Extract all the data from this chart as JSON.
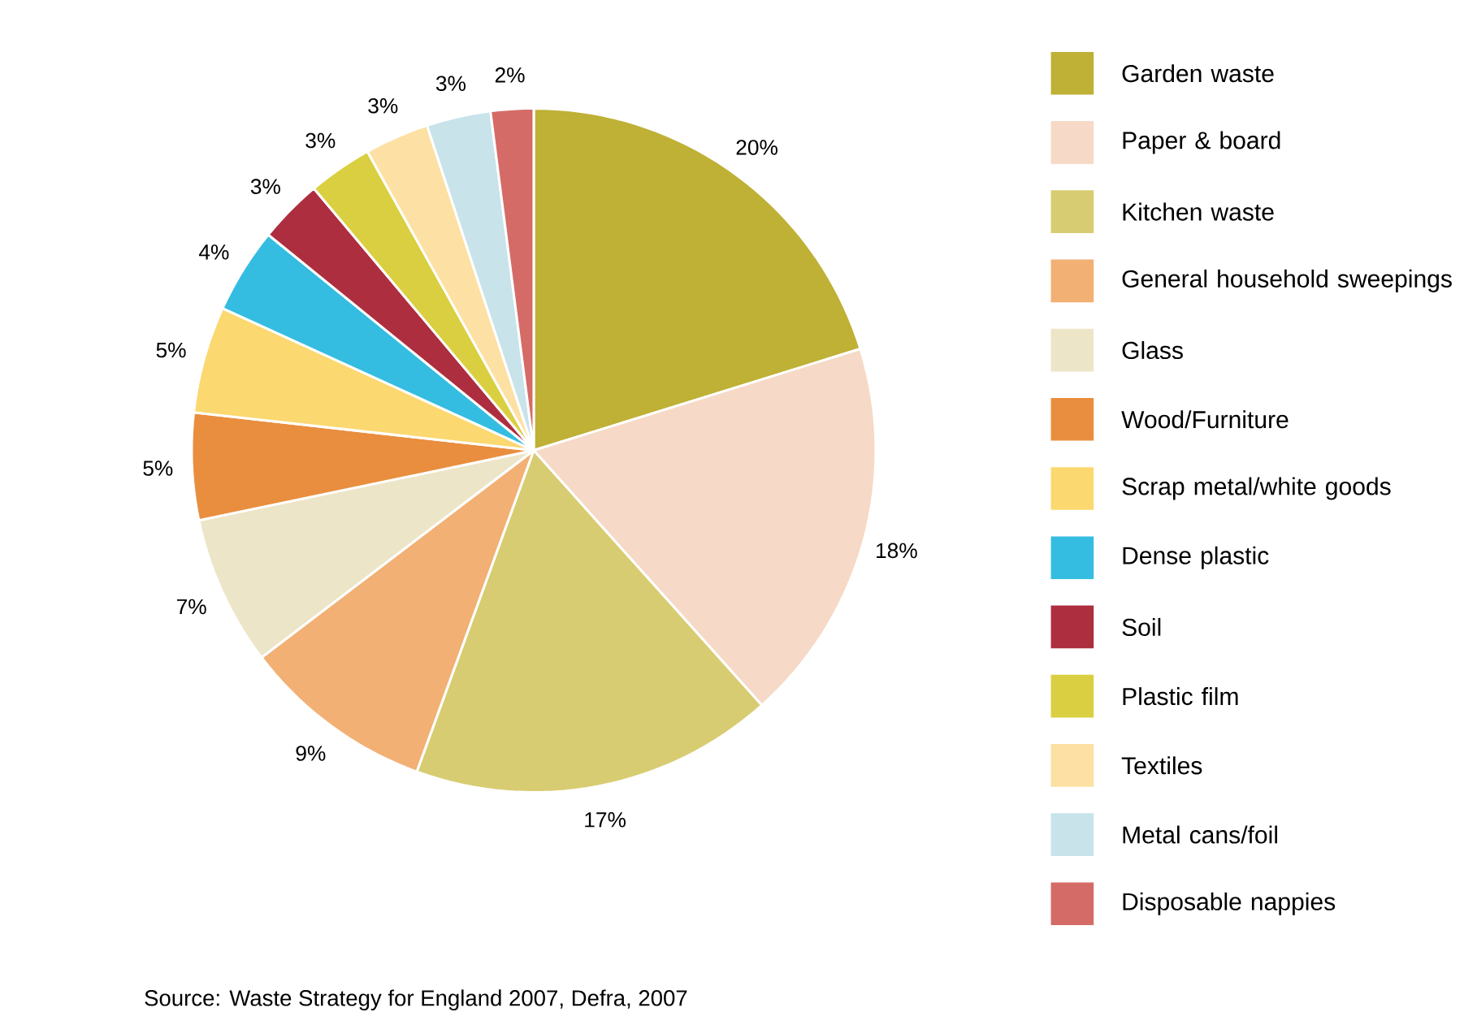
{
  "chart_data": {
    "type": "pie",
    "categories": [
      "Garden waste",
      "Paper & board",
      "Kitchen waste",
      "General household sweepings",
      "Glass",
      "Wood/Furniture",
      "Scrap metal/white goods",
      "Dense plastic",
      "Soil",
      "Plastic film",
      "Textiles",
      "Metal cans/foil",
      "Disposable nappies"
    ],
    "values": [
      20,
      18,
      17,
      9,
      7,
      5,
      5,
      4,
      3,
      3,
      3,
      3,
      2
    ],
    "value_labels": [
      "20%",
      "18%",
      "17%",
      "9%",
      "7%",
      "5%",
      "5%",
      "4%",
      "3%",
      "3%",
      "3%",
      "3%",
      "2%"
    ],
    "colors": [
      "#bfb036",
      "#f6d9c6",
      "#d8cc72",
      "#f2b074",
      "#ede5c8",
      "#e98e3e",
      "#fbd870",
      "#34bde0",
      "#ad2e3f",
      "#dacf40",
      "#fde0a3",
      "#c8e3ea",
      "#d56b67"
    ],
    "legend": "right",
    "annotations": [
      "Source: Waste Strategy for England 2007, Defra, 2007"
    ]
  }
}
